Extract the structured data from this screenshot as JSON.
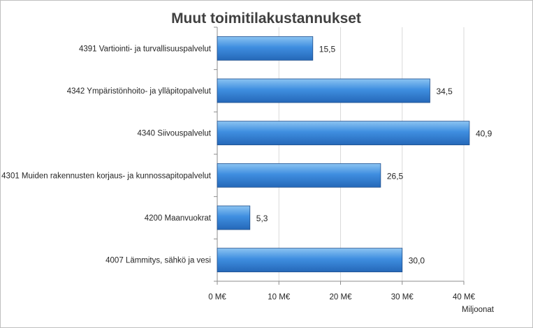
{
  "chart_data": {
    "type": "bar",
    "orientation": "horizontal",
    "title": "Muut toimitilakustannukset",
    "categories": [
      "4391 Vartiointi- ja turvallisuuspalvelut",
      "4342 Ympäristönhoito- ja ylläpitopalvelut",
      "4340 Siivouspalvelut",
      "4301 Muiden rakennusten korjaus- ja kunnossapitopalvelut",
      "4200 Maanvuokrat",
      "4007 Lämmitys, sähkö ja vesi"
    ],
    "values": [
      15.5,
      34.5,
      40.9,
      26.5,
      5.3,
      30.0
    ],
    "data_labels": [
      "15,5",
      "34,5",
      "40,9",
      "26,5",
      "5,3",
      "30,0"
    ],
    "xlim": [
      0,
      40
    ],
    "x_ticks": [
      0,
      10,
      20,
      30,
      40
    ],
    "x_tick_labels": [
      "0 M€",
      "10 M€",
      "20 M€",
      "30 M€",
      "40 M€"
    ],
    "xlabel": "Miljoonat",
    "ylabel": "",
    "grid": "vertical",
    "legend": "none",
    "colors": {
      "bar_light": "#8cc4f2",
      "bar_main": "#3f8ee0",
      "bar_dark": "#2568b8",
      "bar_stroke": "#1f4e8c",
      "grid": "#d9d9d9",
      "axis": "#8c8c8c",
      "text": "#262626",
      "title": "#404040"
    }
  }
}
